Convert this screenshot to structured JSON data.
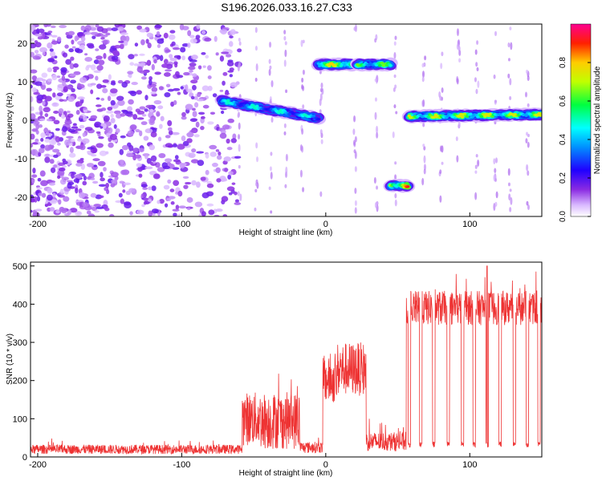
{
  "title": "S196.2026.033.16.27.C33",
  "chart_data": [
    {
      "type": "heatmap",
      "xlabel": "Height of straight line (km)",
      "ylabel": "Frequency (Hz)",
      "xlim": [
        -205,
        150
      ],
      "ylim": [
        -25,
        25
      ],
      "xticks": [
        -200,
        -100,
        0,
        100
      ],
      "yticks": [
        -20,
        -10,
        0,
        10,
        20
      ],
      "colorbar": {
        "label": "Normalized spectral amplitude",
        "range": [
          0,
          1
        ],
        "ticks": [
          0.0,
          0.2,
          0.4,
          0.6,
          0.8
        ],
        "tick_labels": [
          "0.0",
          "0.2",
          "0.4",
          "0.6",
          "0.8"
        ],
        "colors": [
          "#ffffff",
          "#b080ff",
          "#6a00ff",
          "#0000ff",
          "#00ffff",
          "#00ff00",
          "#ffff00",
          "#ff0000",
          "#ff00ff"
        ]
      },
      "noise_region": {
        "x_range": [
          -205,
          -60
        ],
        "freq_range": [
          -25,
          25
        ],
        "amplitude": 0.15
      },
      "tracks": [
        {
          "x_start": -72,
          "x_end": -5,
          "freq_start": 5,
          "freq_end": 0.5,
          "amplitude": 0.5
        },
        {
          "x_start": -5,
          "x_end": 18,
          "freq_start": 14.5,
          "freq_end": 14.5,
          "amplitude": 0.8
        },
        {
          "x_start": 22,
          "x_end": 45,
          "freq_start": 14.5,
          "freq_end": 14.5,
          "amplitude": 0.65
        },
        {
          "x_start": 45,
          "x_end": 57,
          "freq_start": -17,
          "freq_end": -17,
          "amplitude": 0.95
        },
        {
          "x_start": 58,
          "x_end": 150,
          "freq_start": 1,
          "freq_end": 1.5,
          "amplitude": 0.75
        }
      ]
    },
    {
      "type": "line",
      "xlabel": "Height of straight line (km)",
      "ylabel": "SNR (10 * v/v)",
      "xlim": [
        -205,
        150
      ],
      "ylim": [
        0,
        510
      ],
      "xticks": [
        -200,
        -100,
        0,
        100
      ],
      "yticks": [
        0,
        100,
        200,
        300,
        400,
        500
      ],
      "color": "#ee3333",
      "segments": [
        {
          "x_start": -205,
          "x_end": -58,
          "mean": 20,
          "spread": 12
        },
        {
          "x_start": -58,
          "x_end": -45,
          "mean": 100,
          "spread": 70
        },
        {
          "x_start": -45,
          "x_end": -18,
          "mean": 95,
          "spread": 75
        },
        {
          "x_start": -18,
          "x_end": -2,
          "mean": 25,
          "spread": 15
        },
        {
          "x_start": -2,
          "x_end": 8,
          "mean": 200,
          "spread": 60
        },
        {
          "x_start": 8,
          "x_end": 28,
          "mean": 230,
          "spread": 70
        },
        {
          "x_start": 28,
          "x_end": 56,
          "mean": 40,
          "spread": 25
        },
        {
          "x_start": 56,
          "x_end": 150,
          "mean": 390,
          "spread": 45
        }
      ],
      "peak": {
        "x": 112,
        "y": 500
      },
      "dips": [
        58,
        66,
        75,
        85,
        95,
        103,
        112,
        121,
        131,
        140,
        148
      ],
      "dip_value": 25
    }
  ]
}
